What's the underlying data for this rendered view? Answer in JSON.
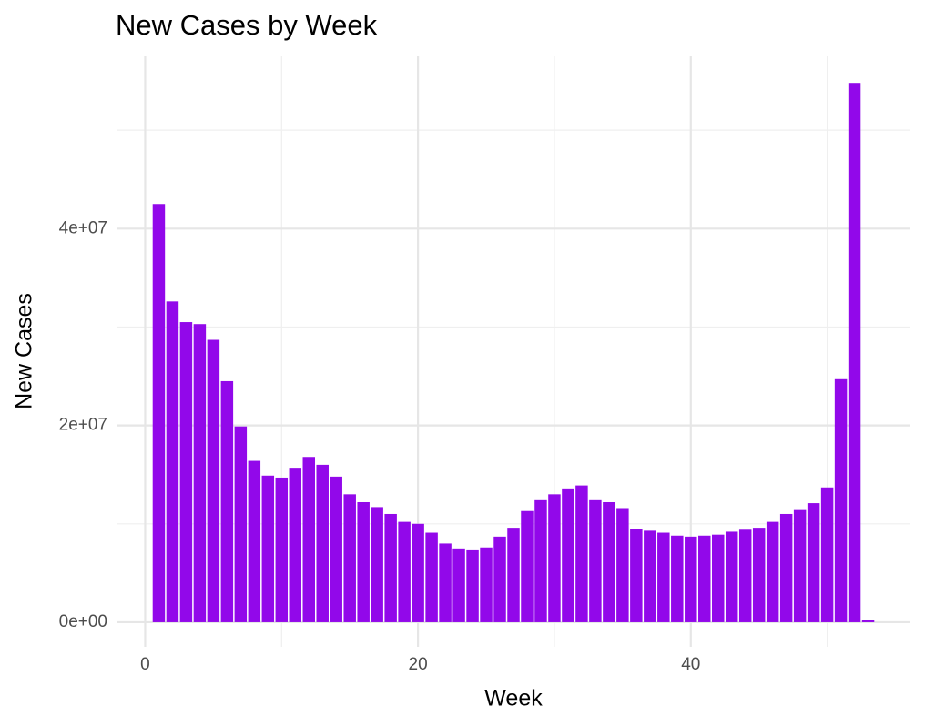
{
  "chart_data": {
    "type": "bar",
    "title": "New Cases by Week",
    "x_label": "Week",
    "y_label": "New Cases",
    "x": [
      1,
      2,
      3,
      4,
      5,
      6,
      7,
      8,
      9,
      10,
      11,
      12,
      13,
      14,
      15,
      16,
      17,
      18,
      19,
      20,
      21,
      22,
      23,
      24,
      25,
      26,
      27,
      28,
      29,
      30,
      31,
      32,
      33,
      34,
      35,
      36,
      37,
      38,
      39,
      40,
      41,
      42,
      43,
      44,
      45,
      46,
      47,
      48,
      49,
      50,
      51,
      52,
      53
    ],
    "values": [
      42500000,
      32600000,
      30500000,
      30300000,
      28700000,
      24500000,
      19900000,
      16400000,
      14900000,
      14700000,
      15700000,
      16800000,
      16000000,
      14800000,
      13000000,
      12200000,
      11700000,
      11000000,
      10200000,
      10000000,
      9100000,
      8000000,
      7500000,
      7400000,
      7600000,
      8700000,
      9600000,
      11300000,
      12400000,
      13000000,
      13600000,
      13900000,
      12400000,
      12200000,
      11600000,
      9500000,
      9300000,
      9100000,
      8800000,
      8700000,
      8800000,
      8900000,
      9200000,
      9400000,
      9600000,
      10200000,
      11000000,
      11400000,
      12100000,
      13700000,
      24700000,
      54800000,
      200000
    ],
    "color": "#9208ea",
    "xlim": [
      -2.1,
      56.1
    ],
    "xticks": [
      0,
      20,
      40
    ],
    "xminor": [
      10,
      30,
      50
    ],
    "ylim": [
      -2500000,
      57500000
    ],
    "yticks": [
      {
        "value": 0,
        "label": "0e+00"
      },
      {
        "value": 20000000,
        "label": "2e+07"
      },
      {
        "value": 40000000,
        "label": "4e+07"
      }
    ],
    "yminor": [
      10000000,
      30000000,
      50000000
    ],
    "grid": true
  }
}
